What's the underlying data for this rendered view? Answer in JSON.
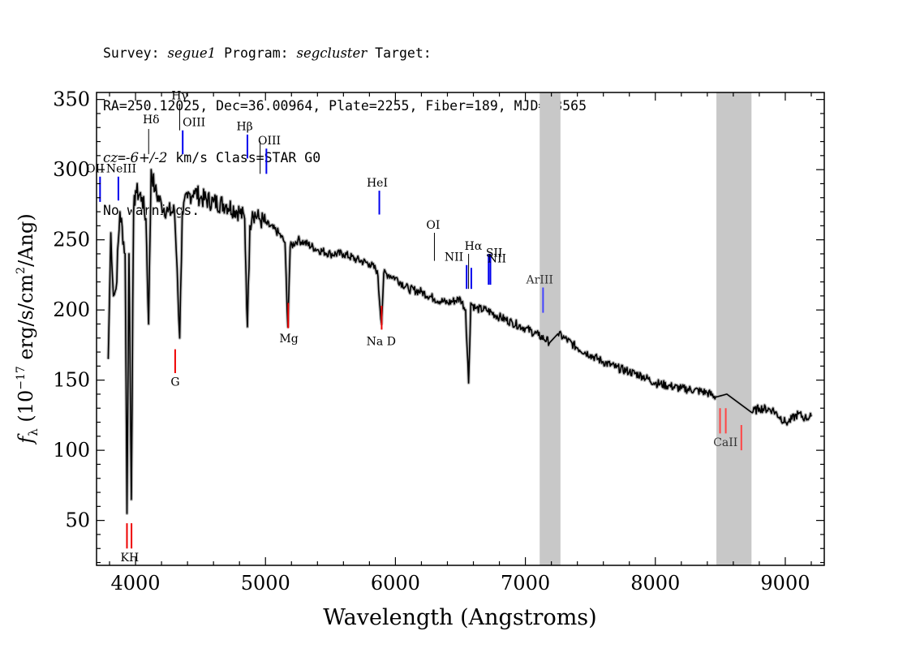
{
  "header": {
    "line1_a": "Survey: ",
    "survey": "segue1",
    "line1_b": " Program: ",
    "program": "segcluster",
    "line1_c": " Target:",
    "line2": "RA=250.12025, Dec=36.00964, Plate=2255, Fiber=189, MJD=53565",
    "cz_label": "cz",
    "cz_eq": "=",
    "cz_value": "-6+/-2",
    "line3_rest": " km/s Class=STAR G0",
    "line4": "No warnings."
  },
  "chart_data": {
    "type": "line",
    "xlabel": "Wavelength (Angstroms)",
    "ylabel": "f_λ (10^-17 erg/s/cm^2/Ang)",
    "xlim": [
      3700,
      9300
    ],
    "ylim": [
      18,
      355
    ],
    "x_ticks": [
      4000,
      5000,
      6000,
      7000,
      8000,
      9000
    ],
    "y_ticks": [
      50,
      100,
      150,
      200,
      250,
      300,
      350
    ],
    "spectrum_x": [
      3790,
      3810,
      3830,
      3850,
      3880,
      3920,
      3934,
      3950,
      3968,
      3985,
      4000,
      4050,
      4080,
      4101,
      4120,
      4150,
      4200,
      4250,
      4300,
      4320,
      4340,
      4360,
      4400,
      4450,
      4500,
      4600,
      4700,
      4800,
      4840,
      4861,
      4880,
      4900,
      4950,
      5000,
      5100,
      5150,
      5172,
      5190,
      5250,
      5300,
      5400,
      5500,
      5600,
      5700,
      5800,
      5860,
      5893,
      5910,
      5950,
      6000,
      6100,
      6200,
      6300,
      6400,
      6500,
      6540,
      6563,
      6580,
      6620,
      6700,
      6800,
      6900,
      7000,
      7100,
      7190,
      7250,
      7300,
      7400,
      7500,
      7600,
      7700,
      7800,
      7900,
      8000,
      8100,
      8200,
      8300,
      8400,
      8470,
      8550,
      8740,
      8800,
      8900,
      9000,
      9020,
      9100,
      9150,
      9200
    ],
    "spectrum_y": [
      165,
      255,
      210,
      215,
      270,
      240,
      55,
      240,
      65,
      270,
      285,
      280,
      265,
      190,
      300,
      285,
      275,
      270,
      270,
      230,
      180,
      270,
      280,
      285,
      280,
      277,
      275,
      270,
      265,
      188,
      260,
      270,
      265,
      262,
      255,
      248,
      188,
      245,
      250,
      248,
      243,
      240,
      240,
      236,
      233,
      228,
      190,
      226,
      225,
      223,
      215,
      213,
      208,
      205,
      208,
      200,
      148,
      205,
      201,
      200,
      195,
      191,
      187,
      182,
      177,
      183,
      180,
      173,
      168,
      163,
      159,
      156,
      153,
      148,
      146,
      144,
      143,
      141,
      138,
      140,
      127,
      130,
      129,
      120,
      120,
      126,
      123,
      124
    ],
    "masked_regions": [
      [
        7110,
        7270
      ],
      [
        8470,
        8740
      ]
    ],
    "emission_lines": [
      {
        "label": "OII",
        "wave": 3727,
        "y0": 277,
        "y1": 295,
        "color": "#0000ee"
      },
      {
        "label": "NeIII",
        "wave": 3868,
        "y0": 278,
        "y1": 295,
        "color": "#0000ee"
      },
      {
        "label": "Hδ",
        "wave": 4101,
        "y0": 311,
        "y1": 329,
        "color": "#000000"
      },
      {
        "label": "Hγ",
        "wave": 4340,
        "y0": 328,
        "y1": 347,
        "color": "#000000"
      },
      {
        "label": "OIII",
        "wave": 4363,
        "y0": 311,
        "y1": 328,
        "color": "#0000ee"
      },
      {
        "label": "Hβ",
        "wave": 4861,
        "y0": 308,
        "y1": 325,
        "color": "#0000ee"
      },
      {
        "label": "OIII",
        "wave": 4959,
        "y0": 297,
        "y1": 320,
        "color": "#000000"
      },
      {
        "label": "OIII",
        "wave": 5007,
        "y0": 297,
        "y1": 315,
        "color": "#0000ee"
      },
      {
        "label": "HeI",
        "wave": 5876,
        "y0": 268,
        "y1": 285,
        "color": "#0000ee"
      },
      {
        "label": "OI",
        "wave": 6300,
        "y0": 235,
        "y1": 255,
        "color": "#000000"
      },
      {
        "label": "NII",
        "wave": 6548,
        "y0": 215,
        "y1": 232,
        "color": "#0000ee"
      },
      {
        "label": "Hα",
        "wave": 6563,
        "y0": 215,
        "y1": 240,
        "color": "#000000"
      },
      {
        "label": "NII",
        "wave": 6584,
        "y0": 215,
        "y1": 230,
        "color": "#0000ee"
      },
      {
        "label": "SII",
        "wave": 6717,
        "y0": 218,
        "y1": 240,
        "color": "#0000ee"
      },
      {
        "label": "SII",
        "wave": 6731,
        "y0": 218,
        "y1": 240,
        "color": "#0000ee"
      },
      {
        "label": "ArIII",
        "wave": 7136,
        "y0": 198,
        "y1": 216,
        "color": "#4444ff"
      }
    ],
    "absorption_lines": [
      {
        "label": "K",
        "wave": 3934,
        "y0": 30,
        "y1": 48,
        "color": "#ee0000"
      },
      {
        "label": "H",
        "wave": 3969,
        "y0": 30,
        "y1": 48,
        "color": "#ee0000"
      },
      {
        "label": "G",
        "wave": 4305,
        "y0": 155,
        "y1": 172,
        "color": "#ee0000"
      },
      {
        "label": "Mg",
        "wave": 5175,
        "y0": 187,
        "y1": 205,
        "color": "#ee0000"
      },
      {
        "label": "Na D",
        "wave": 5894,
        "y0": 186,
        "y1": 203,
        "color": "#ee0000"
      },
      {
        "label": "CaII",
        "wave": 8498,
        "y0": 112,
        "y1": 130,
        "color": "#ff4444"
      },
      {
        "label": "CaII",
        "wave": 8542,
        "y0": 112,
        "y1": 130,
        "color": "#ff4444"
      },
      {
        "label": "CaII",
        "wave": 8662,
        "y0": 100,
        "y1": 118,
        "color": "#ff4444"
      }
    ],
    "line_labels": [
      {
        "text": "OII",
        "wave": 3690,
        "y": 298,
        "color": "#000000"
      },
      {
        "text": "NeIII",
        "wave": 3890,
        "y": 298,
        "color": "#000000"
      },
      {
        "text": "Hδ",
        "wave": 4120,
        "y": 333,
        "color": "#000000"
      },
      {
        "text": "Hγ",
        "wave": 4340,
        "y": 350,
        "color": "#000000"
      },
      {
        "text": "OIII",
        "wave": 4450,
        "y": 331,
        "color": "#000000"
      },
      {
        "text": "Hβ",
        "wave": 4840,
        "y": 328,
        "color": "#000000"
      },
      {
        "text": "OIII",
        "wave": 5030,
        "y": 318,
        "color": "#000000"
      },
      {
        "text": "HeI",
        "wave": 5860,
        "y": 288,
        "color": "#000000"
      },
      {
        "text": "OI",
        "wave": 6290,
        "y": 258,
        "color": "#000000"
      },
      {
        "text": "Hα",
        "wave": 6600,
        "y": 243,
        "color": "#000000"
      },
      {
        "text": "NII",
        "wave": 6450,
        "y": 235,
        "color": "#000000"
      },
      {
        "text": "NII",
        "wave": 6780,
        "y": 234,
        "color": "#000000"
      },
      {
        "text": "SII",
        "wave": 6760,
        "y": 238,
        "color": "#000000"
      },
      {
        "text": "ArIII",
        "wave": 7110,
        "y": 219,
        "color": "#333333"
      },
      {
        "text": "Mg",
        "wave": 5180,
        "y": 177,
        "color": "#000000"
      },
      {
        "text": "Na D",
        "wave": 5890,
        "y": 175,
        "color": "#000000"
      },
      {
        "text": "G",
        "wave": 4305,
        "y": 146,
        "color": "#000000"
      },
      {
        "text": "KH",
        "wave": 3955,
        "y": 21,
        "color": "#000000"
      },
      {
        "text": "CaII",
        "wave": 8540,
        "y": 103,
        "color": "#333333"
      }
    ],
    "colors": {
      "spectrum": "#000000",
      "error_band": "#bbbbbb",
      "mask": "#c8c8c8",
      "axis": "#000000"
    }
  }
}
